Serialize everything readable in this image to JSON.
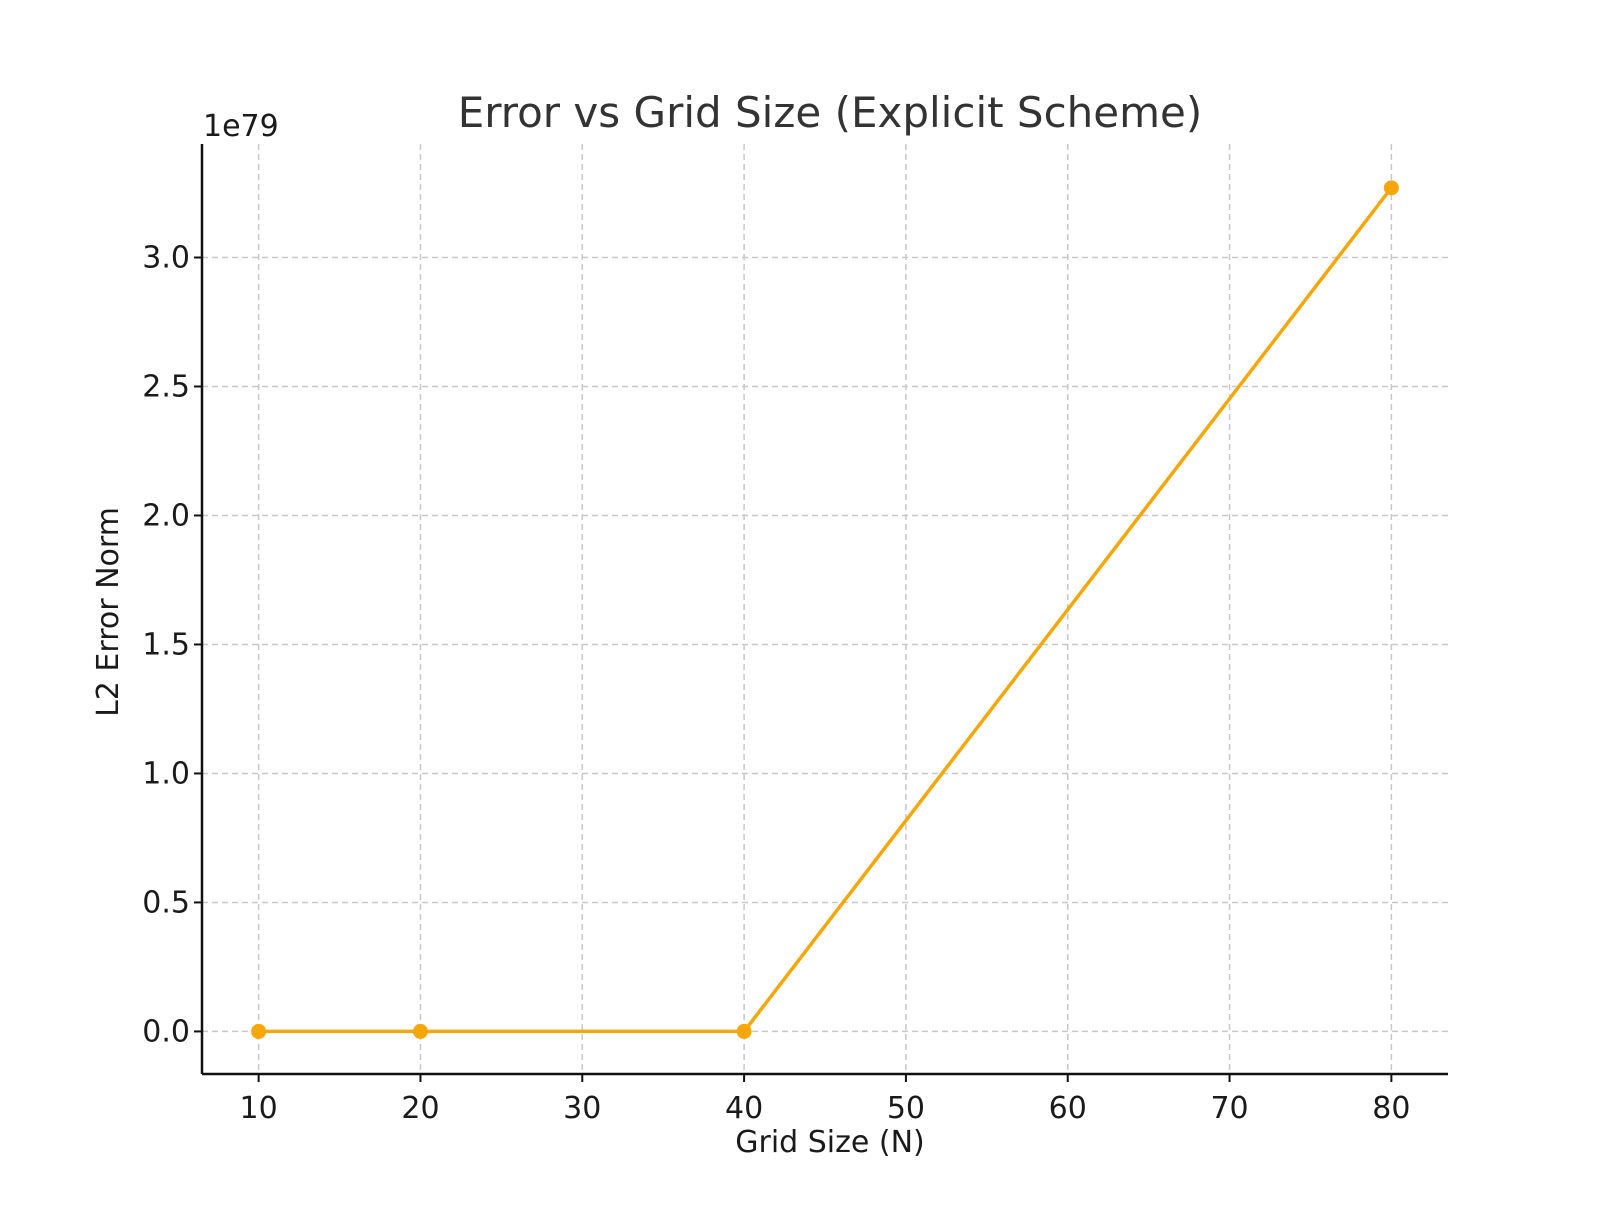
{
  "chart_data": {
    "type": "line",
    "title": "Error vs Grid Size (Explicit Scheme)",
    "xlabel": "Grid Size (N)",
    "ylabel": "L2 Error Norm",
    "y_offset_label": "1e79",
    "x_ticks": [
      10,
      20,
      30,
      40,
      50,
      60,
      70,
      80
    ],
    "x_tick_labels": [
      "10",
      "20",
      "30",
      "40",
      "50",
      "60",
      "70",
      "80"
    ],
    "y_ticks": [
      0.0,
      0.5,
      1.0,
      1.5,
      2.0,
      2.5,
      3.0
    ],
    "y_tick_labels": [
      "0.0",
      "0.5",
      "1.0",
      "1.5",
      "2.0",
      "2.5",
      "3.0"
    ],
    "xlim": [
      6.5,
      83.5
    ],
    "ylim": [
      -0.165,
      3.44
    ],
    "grid": true,
    "series": [
      {
        "x": [
          10,
          20,
          40,
          80
        ],
        "y": [
          0.0,
          0.0,
          0.0,
          3.27
        ],
        "color": "#f5a70a",
        "marker": "circle"
      }
    ]
  }
}
